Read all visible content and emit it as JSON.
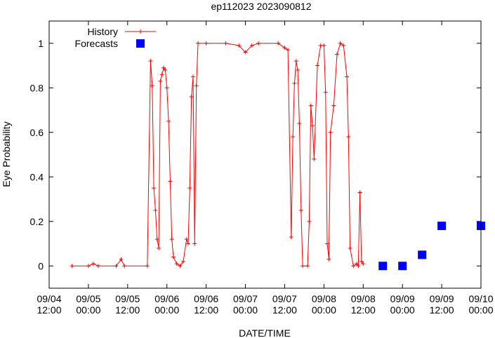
{
  "chart_data": {
    "type": "line",
    "title": "ep112023 2023090812",
    "xlabel": "DATE/TIME",
    "ylabel": "Eye Probability",
    "x_axis": {
      "min": "2023-09-04T12:00",
      "max": "2023-09-10T00:00",
      "ticks": [
        {
          "x": "2023-09-04T12:00",
          "label_date": "09/04",
          "label_time": "12:00"
        },
        {
          "x": "2023-09-05T00:00",
          "label_date": "09/05",
          "label_time": "00:00"
        },
        {
          "x": "2023-09-05T12:00",
          "label_date": "09/05",
          "label_time": "12:00"
        },
        {
          "x": "2023-09-06T00:00",
          "label_date": "09/06",
          "label_time": "00:00"
        },
        {
          "x": "2023-09-06T12:00",
          "label_date": "09/06",
          "label_time": "12:00"
        },
        {
          "x": "2023-09-07T00:00",
          "label_date": "09/07",
          "label_time": "00:00"
        },
        {
          "x": "2023-09-07T12:00",
          "label_date": "09/07",
          "label_time": "12:00"
        },
        {
          "x": "2023-09-08T00:00",
          "label_date": "09/08",
          "label_time": "00:00"
        },
        {
          "x": "2023-09-08T12:00",
          "label_date": "09/08",
          "label_time": "12:00"
        },
        {
          "x": "2023-09-09T00:00",
          "label_date": "09/09",
          "label_time": "00:00"
        },
        {
          "x": "2023-09-09T12:00",
          "label_date": "09/09",
          "label_time": "12:00"
        },
        {
          "x": "2023-09-10T00:00",
          "label_date": "09/10",
          "label_time": "00:00"
        }
      ]
    },
    "y_axis": {
      "min": -0.1,
      "max": 1.1,
      "ticks": [
        {
          "y": 0,
          "label": "0"
        },
        {
          "y": 0.2,
          "label": "0.2"
        },
        {
          "y": 0.4,
          "label": "0.4"
        },
        {
          "y": 0.6,
          "label": "0.6"
        },
        {
          "y": 0.8,
          "label": "0.8"
        },
        {
          "y": 1,
          "label": "1"
        }
      ]
    },
    "grid": false,
    "legend_position": "top-left",
    "series": [
      {
        "name": "History",
        "style": "line-with-plus-markers",
        "color": "#ff0000",
        "points": [
          [
            "2023-09-04T19:00",
            0
          ],
          [
            "2023-09-05T00:00",
            0
          ],
          [
            "2023-09-05T01:30",
            0.01
          ],
          [
            "2023-09-05T03:00",
            0
          ],
          [
            "2023-09-05T08:30",
            0
          ],
          [
            "2023-09-05T10:00",
            0.03
          ],
          [
            "2023-09-05T11:00",
            0
          ],
          [
            "2023-09-05T18:00",
            0
          ],
          [
            "2023-09-05T19:00",
            0.92
          ],
          [
            "2023-09-05T19:30",
            0.81
          ],
          [
            "2023-09-05T20:00",
            0.35
          ],
          [
            "2023-09-05T20:30",
            0.25
          ],
          [
            "2023-09-05T21:00",
            0.12
          ],
          [
            "2023-09-05T21:30",
            0.08
          ],
          [
            "2023-09-05T22:00",
            0.83
          ],
          [
            "2023-09-05T22:30",
            0.86
          ],
          [
            "2023-09-05T23:00",
            0.89
          ],
          [
            "2023-09-05T23:30",
            0.88
          ],
          [
            "2023-09-06T00:00",
            0.8
          ],
          [
            "2023-09-06T00:30",
            0.65
          ],
          [
            "2023-09-06T01:00",
            0.38
          ],
          [
            "2023-09-06T01:30",
            0.12
          ],
          [
            "2023-09-06T02:00",
            0.04
          ],
          [
            "2023-09-06T03:00",
            0.01
          ],
          [
            "2023-09-06T04:00",
            0
          ],
          [
            "2023-09-06T05:00",
            0.02
          ],
          [
            "2023-09-06T06:00",
            0.12
          ],
          [
            "2023-09-06T06:30",
            0.1
          ],
          [
            "2023-09-06T07:00",
            0.35
          ],
          [
            "2023-09-06T07:30",
            0.76
          ],
          [
            "2023-09-06T08:00",
            0.85
          ],
          [
            "2023-09-06T08:30",
            0.1
          ],
          [
            "2023-09-06T09:00",
            0.81
          ],
          [
            "2023-09-06T09:30",
            1.0
          ],
          [
            "2023-09-06T12:00",
            1.0
          ],
          [
            "2023-09-06T18:00",
            1.0
          ],
          [
            "2023-09-06T22:00",
            0.99
          ],
          [
            "2023-09-07T00:00",
            0.96
          ],
          [
            "2023-09-07T02:00",
            0.99
          ],
          [
            "2023-09-07T04:00",
            1.0
          ],
          [
            "2023-09-07T10:00",
            1.0
          ],
          [
            "2023-09-07T12:00",
            0.98
          ],
          [
            "2023-09-07T13:00",
            0.97
          ],
          [
            "2023-09-07T14:00",
            0.13
          ],
          [
            "2023-09-07T14:30",
            0.58
          ],
          [
            "2023-09-07T15:00",
            0.82
          ],
          [
            "2023-09-07T15:30",
            0.92
          ],
          [
            "2023-09-07T16:00",
            0.88
          ],
          [
            "2023-09-07T16:30",
            0.64
          ],
          [
            "2023-09-07T17:00",
            0.25
          ],
          [
            "2023-09-07T17:30",
            0
          ],
          [
            "2023-09-07T19:00",
            0
          ],
          [
            "2023-09-07T19:30",
            0.2
          ],
          [
            "2023-09-07T20:00",
            0.72
          ],
          [
            "2023-09-07T20:30",
            0.63
          ],
          [
            "2023-09-07T21:00",
            0.48
          ],
          [
            "2023-09-07T22:00",
            0.9
          ],
          [
            "2023-09-07T23:00",
            0.99
          ],
          [
            "2023-09-08T00:00",
            0.99
          ],
          [
            "2023-09-08T00:30",
            0.78
          ],
          [
            "2023-09-08T01:00",
            0.1
          ],
          [
            "2023-09-08T01:30",
            0.03
          ],
          [
            "2023-09-08T02:00",
            0.6
          ],
          [
            "2023-09-08T03:00",
            0.72
          ],
          [
            "2023-09-08T04:00",
            0.95
          ],
          [
            "2023-09-08T05:00",
            1.0
          ],
          [
            "2023-09-08T06:00",
            0.99
          ],
          [
            "2023-09-08T07:00",
            0.85
          ],
          [
            "2023-09-08T07:30",
            0.58
          ],
          [
            "2023-09-08T08:00",
            0.08
          ],
          [
            "2023-09-08T09:00",
            0
          ],
          [
            "2023-09-08T10:00",
            0.01
          ],
          [
            "2023-09-08T10:30",
            0
          ],
          [
            "2023-09-08T11:00",
            0.33
          ],
          [
            "2023-09-08T11:30",
            0.02
          ],
          [
            "2023-09-08T12:00",
            0.01
          ]
        ]
      },
      {
        "name": "Forecasts",
        "style": "square-markers",
        "color": "#0000ff",
        "points": [
          [
            "2023-09-08T18:00",
            0
          ],
          [
            "2023-09-09T00:00",
            0
          ],
          [
            "2023-09-09T06:00",
            0.05
          ],
          [
            "2023-09-09T12:00",
            0.18
          ],
          [
            "2023-09-10T00:00",
            0.18
          ]
        ]
      }
    ]
  }
}
